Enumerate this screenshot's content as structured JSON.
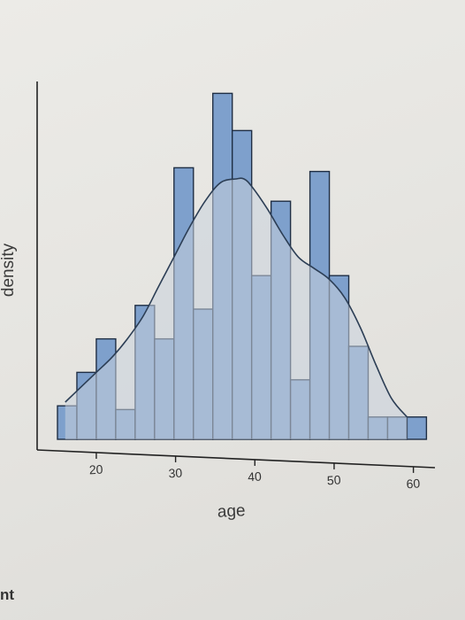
{
  "chart_data": {
    "type": "bar",
    "subtype": "histogram-with-density",
    "title": "",
    "xlabel": "age",
    "ylabel": "density",
    "xlim": [
      15,
      62
    ],
    "ylim": [
      0,
      0.09
    ],
    "xticks": [
      20,
      30,
      40,
      50,
      60
    ],
    "bin_width": 2.5,
    "bins": [
      {
        "start": 15.0,
        "value": 0.009
      },
      {
        "start": 17.5,
        "value": 0.018
      },
      {
        "start": 20.0,
        "value": 0.027
      },
      {
        "start": 22.5,
        "value": 0.008
      },
      {
        "start": 25.0,
        "value": 0.036
      },
      {
        "start": 27.5,
        "value": 0.027
      },
      {
        "start": 30.0,
        "value": 0.073
      },
      {
        "start": 32.5,
        "value": 0.035
      },
      {
        "start": 35.0,
        "value": 0.093
      },
      {
        "start": 37.5,
        "value": 0.083
      },
      {
        "start": 40.0,
        "value": 0.044
      },
      {
        "start": 42.5,
        "value": 0.064
      },
      {
        "start": 45.0,
        "value": 0.016
      },
      {
        "start": 47.5,
        "value": 0.072
      },
      {
        "start": 50.0,
        "value": 0.044
      },
      {
        "start": 52.5,
        "value": 0.025
      },
      {
        "start": 55.0,
        "value": 0.006
      },
      {
        "start": 57.5,
        "value": 0.006
      },
      {
        "start": 60.0,
        "value": 0.006
      }
    ],
    "density_curve": {
      "x": [
        16,
        18,
        20,
        22,
        24,
        26,
        28,
        30,
        32,
        34,
        36,
        38,
        39,
        40,
        42,
        44,
        46,
        48,
        50,
        52,
        54,
        56,
        58,
        60
      ],
      "y": [
        0.01,
        0.014,
        0.018,
        0.022,
        0.027,
        0.033,
        0.041,
        0.049,
        0.057,
        0.064,
        0.069,
        0.07,
        0.07,
        0.068,
        0.062,
        0.055,
        0.049,
        0.046,
        0.043,
        0.038,
        0.03,
        0.02,
        0.011,
        0.006
      ]
    },
    "colors": {
      "bar_fill": "#7ea0cc",
      "bar_stroke": "#1f2e44",
      "density_fill": "#c9d2dd",
      "density_line": "#2c3e55",
      "axis": "#222222"
    },
    "grid": false,
    "legend": "none"
  },
  "corner_text": "nt"
}
